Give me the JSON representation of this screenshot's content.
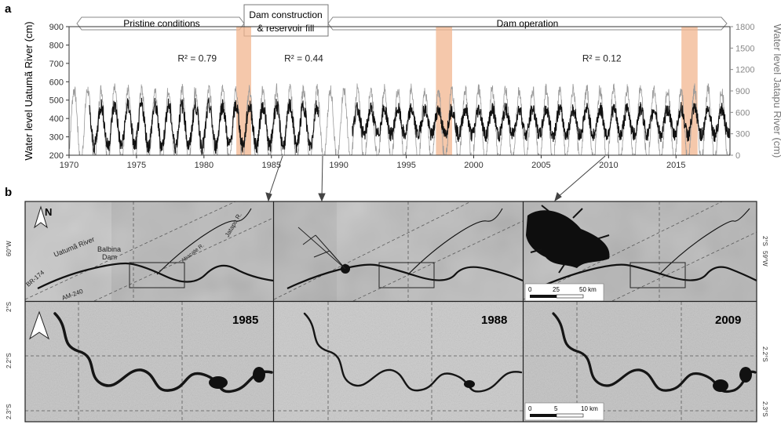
{
  "figure": {
    "panel_a_label": "a",
    "panel_b_label": "b"
  },
  "chart_data": {
    "type": "line",
    "xlim": [
      1970,
      2019
    ],
    "x_ticks": [
      "1970",
      "1975",
      "1980",
      "1985",
      "1990",
      "1995",
      "2000",
      "2005",
      "2010",
      "2015"
    ],
    "y_left": {
      "label": "Water level Uatumã River (cm)",
      "ylim": [
        200,
        900
      ],
      "ticks": [
        "200",
        "300",
        "400",
        "500",
        "600",
        "700",
        "800",
        "900"
      ]
    },
    "y_right": {
      "label": "Water level Jatapu River (cm)",
      "ylim": [
        0,
        1800
      ],
      "ticks": [
        "0",
        "300",
        "600",
        "900",
        "1200",
        "1500",
        "1800"
      ]
    },
    "periods": [
      {
        "label": "Pristine conditions",
        "start": 1970,
        "end": 1982.5
      },
      {
        "label_line1": "Dam construction",
        "label_line2": "& reservoir fill",
        "start": 1982.5,
        "end": 1989.2
      },
      {
        "label": "Dam operation",
        "start": 1989.2,
        "end": 2019
      }
    ],
    "highlight_bands": [
      [
        1982.4,
        1983.5
      ],
      [
        1997.2,
        1998.4
      ],
      [
        2015.4,
        2016.6
      ]
    ],
    "annotations": [
      {
        "text": "R² = 0.79",
        "x": 1979.5,
        "y": 710
      },
      {
        "text": "R² = 0.44",
        "x": 1987.4,
        "y": 710
      },
      {
        "text": "R² = 0.12",
        "x": 2009.5,
        "y": 710
      }
    ],
    "series": [
      {
        "color": "#111111",
        "axis": "left",
        "segments": [
          {
            "start": 1971.5,
            "end": 1988.5,
            "base": 360,
            "amp": 110,
            "noise": 45
          },
          {
            "start": 1991.0,
            "end": 2019.0,
            "base": 380,
            "amp": 70,
            "noise": 40
          }
        ]
      },
      {
        "color": "#9a9a9a",
        "axis": "right",
        "segments": [
          {
            "start": 1970.0,
            "end": 2019.0,
            "base": 420,
            "amp": 500,
            "noise": 90
          }
        ]
      }
    ],
    "inset_years": [
      "1985",
      "1988",
      "2009"
    ]
  },
  "maps": {
    "labels": {
      "north": "N",
      "uatuma": "Uatumã River",
      "balbina": "Balbina",
      "dam": "Dam",
      "br174": "BR-174",
      "am240": "AM-240",
      "abacate": "Abacate R.",
      "jatapu": "Jatapu R."
    },
    "coords": {
      "lon60": "60°W",
      "lon59": "59°W",
      "lat2_top": "2°S",
      "lat2_top_right": "2°S",
      "lat22_left": "2.2°S",
      "lat22_right": "2.2°S",
      "lat23_left": "2.3°S",
      "lat23_right": "2.3°S"
    },
    "scale_top": {
      "v0": "0",
      "v1": "25",
      "v2": "50 km"
    },
    "scale_bottom": {
      "v0": "0",
      "v1": "5",
      "v2": "10 km"
    },
    "years": {
      "y1985": "1985",
      "y1988": "1988",
      "y2009": "2009"
    }
  }
}
